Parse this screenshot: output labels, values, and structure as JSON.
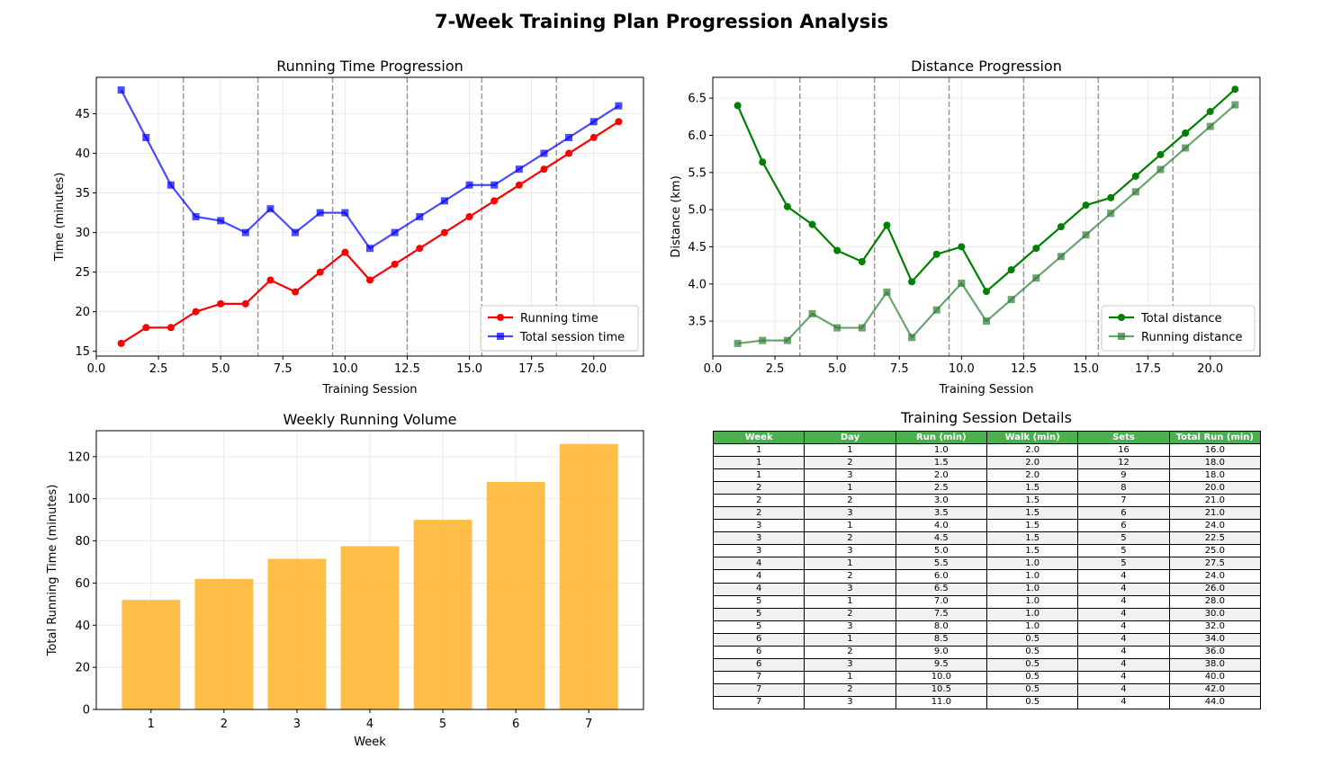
{
  "suptitle": "7-Week Training Plan Progression Analysis",
  "chart_data": [
    {
      "type": "line",
      "title": "Running Time Progression",
      "xlabel": "Training Session",
      "ylabel": "Time (minutes)",
      "xlim": [
        0,
        22
      ],
      "ylim": [
        14.4,
        49.6
      ],
      "xticks": [
        "0.0",
        "2.5",
        "5.0",
        "7.5",
        "10.0",
        "12.5",
        "15.0",
        "17.5",
        "20.0"
      ],
      "yticks": [
        "15",
        "20",
        "25",
        "30",
        "35",
        "40",
        "45"
      ],
      "grid": true,
      "legend": "lower-right",
      "week_separators": [
        3.5,
        6.5,
        9.5,
        12.5,
        15.5,
        18.5
      ],
      "x": [
        1,
        2,
        3,
        4,
        5,
        6,
        7,
        8,
        9,
        10,
        11,
        12,
        13,
        14,
        15,
        16,
        17,
        18,
        19,
        20,
        21
      ],
      "series": [
        {
          "name": "Running time",
          "color": "#ff0000",
          "marker": "circle",
          "values": [
            16,
            18,
            18,
            20,
            21,
            21,
            24,
            22.5,
            25,
            27.5,
            24,
            26,
            28,
            30,
            32,
            34,
            36,
            38,
            40,
            42,
            44
          ]
        },
        {
          "name": "Total session time",
          "color": "#0000ff",
          "marker": "square",
          "values": [
            48,
            42,
            36,
            32,
            31.5,
            30,
            33,
            30,
            32.5,
            32.5,
            28,
            30,
            32,
            34,
            36,
            36,
            38,
            40,
            42,
            44,
            46
          ]
        }
      ]
    },
    {
      "type": "line",
      "title": "Distance Progression",
      "xlabel": "Training Session",
      "ylabel": "Distance (km)",
      "xlim": [
        0,
        22
      ],
      "ylim": [
        3.03,
        6.78
      ],
      "xticks": [
        "0.0",
        "2.5",
        "5.0",
        "7.5",
        "10.0",
        "12.5",
        "15.0",
        "17.5",
        "20.0"
      ],
      "yticks": [
        "3.5",
        "4.0",
        "4.5",
        "5.0",
        "5.5",
        "6.0",
        "6.5"
      ],
      "grid": true,
      "legend": "lower-right",
      "week_separators": [
        3.5,
        6.5,
        9.5,
        12.5,
        15.5,
        18.5
      ],
      "x": [
        1,
        2,
        3,
        4,
        5,
        6,
        7,
        8,
        9,
        10,
        11,
        12,
        13,
        14,
        15,
        16,
        17,
        18,
        19,
        20,
        21
      ],
      "series": [
        {
          "name": "Total distance",
          "color": "#008000",
          "marker": "circle",
          "values": [
            6.4,
            5.64,
            5.04,
            4.8,
            4.45,
            4.3,
            4.79,
            4.03,
            4.4,
            4.5,
            3.9,
            4.19,
            4.48,
            4.77,
            5.06,
            5.16,
            5.45,
            5.74,
            6.03,
            6.32,
            6.62
          ]
        },
        {
          "name": "Running distance",
          "color": "#2e7d32",
          "marker": "square",
          "values": [
            3.2,
            3.24,
            3.24,
            3.6,
            3.41,
            3.41,
            3.89,
            3.28,
            3.65,
            4.01,
            3.5,
            3.79,
            4.08,
            4.37,
            4.66,
            4.95,
            5.24,
            5.54,
            5.83,
            6.12,
            6.41
          ]
        }
      ]
    },
    {
      "type": "bar",
      "title": "Weekly Running Volume",
      "xlabel": "Week",
      "ylabel": "Total Running Time (minutes)",
      "categories": [
        "1",
        "2",
        "3",
        "4",
        "5",
        "6",
        "7"
      ],
      "values": [
        52,
        62,
        71.5,
        77.5,
        90,
        108,
        126
      ],
      "ylim": [
        0,
        132.3
      ],
      "yticks": [
        "0",
        "20",
        "40",
        "60",
        "80",
        "100",
        "120"
      ],
      "color": "#ffb733",
      "grid": true
    },
    {
      "type": "table",
      "title": "Training Session Details",
      "header_color": "#4caf50",
      "columns": [
        "Week",
        "Day",
        "Run (min)",
        "Walk (min)",
        "Sets",
        "Total Run (min)"
      ],
      "rows": [
        [
          "1",
          "1",
          "1.0",
          "2.0",
          "16",
          "16.0"
        ],
        [
          "1",
          "2",
          "1.5",
          "2.0",
          "12",
          "18.0"
        ],
        [
          "1",
          "3",
          "2.0",
          "2.0",
          "9",
          "18.0"
        ],
        [
          "2",
          "1",
          "2.5",
          "1.5",
          "8",
          "20.0"
        ],
        [
          "2",
          "2",
          "3.0",
          "1.5",
          "7",
          "21.0"
        ],
        [
          "2",
          "3",
          "3.5",
          "1.5",
          "6",
          "21.0"
        ],
        [
          "3",
          "1",
          "4.0",
          "1.5",
          "6",
          "24.0"
        ],
        [
          "3",
          "2",
          "4.5",
          "1.5",
          "5",
          "22.5"
        ],
        [
          "3",
          "3",
          "5.0",
          "1.5",
          "5",
          "25.0"
        ],
        [
          "4",
          "1",
          "5.5",
          "1.0",
          "5",
          "27.5"
        ],
        [
          "4",
          "2",
          "6.0",
          "1.0",
          "4",
          "24.0"
        ],
        [
          "4",
          "3",
          "6.5",
          "1.0",
          "4",
          "26.0"
        ],
        [
          "5",
          "1",
          "7.0",
          "1.0",
          "4",
          "28.0"
        ],
        [
          "5",
          "2",
          "7.5",
          "1.0",
          "4",
          "30.0"
        ],
        [
          "5",
          "3",
          "8.0",
          "1.0",
          "4",
          "32.0"
        ],
        [
          "6",
          "1",
          "8.5",
          "0.5",
          "4",
          "34.0"
        ],
        [
          "6",
          "2",
          "9.0",
          "0.5",
          "4",
          "36.0"
        ],
        [
          "6",
          "3",
          "9.5",
          "0.5",
          "4",
          "38.0"
        ],
        [
          "7",
          "1",
          "10.0",
          "0.5",
          "4",
          "40.0"
        ],
        [
          "7",
          "2",
          "10.5",
          "0.5",
          "4",
          "42.0"
        ],
        [
          "7",
          "3",
          "11.0",
          "0.5",
          "4",
          "44.0"
        ]
      ]
    }
  ]
}
